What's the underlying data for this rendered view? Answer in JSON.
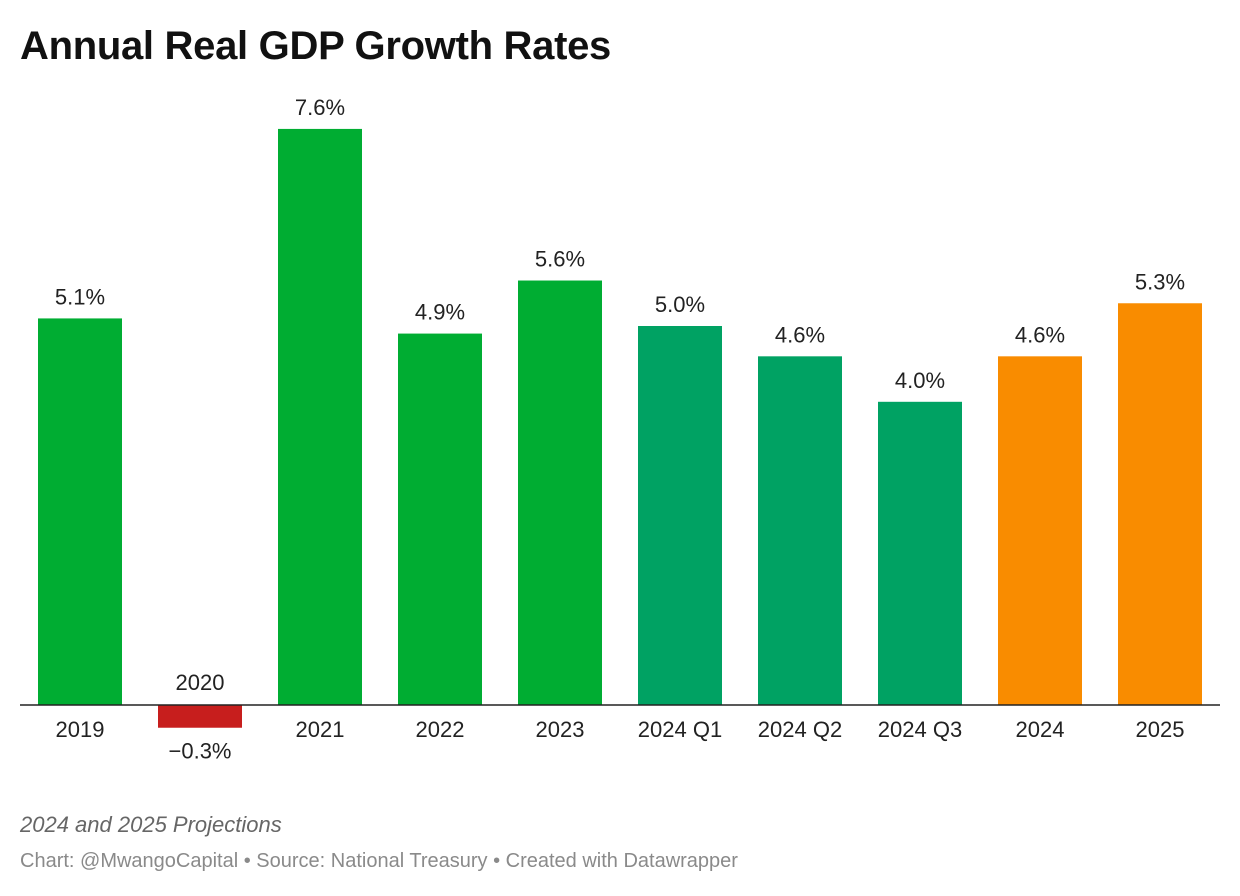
{
  "title": "Annual Real GDP Growth Rates",
  "notes": "2024 and 2025 Projections",
  "footer": "Chart: @MwangoCapital • Source: National Treasury • Created with Datawrapper",
  "colors": {
    "historical": "#00ad32",
    "quarterly": "#00a263",
    "projection": "#f98c00",
    "negative": "#c71e1d",
    "baseline": "#222222"
  },
  "chart_data": {
    "type": "bar",
    "categories": [
      "2019",
      "2020",
      "2021",
      "2022",
      "2023",
      "2024 Q1",
      "2024 Q2",
      "2024 Q3",
      "2024",
      "2025"
    ],
    "values": [
      5.1,
      -0.3,
      7.6,
      4.9,
      5.6,
      5.0,
      4.6,
      4.0,
      4.6,
      5.3
    ],
    "value_labels": [
      "5.1%",
      "−0.3%",
      "7.6%",
      "4.9%",
      "5.6%",
      "5.0%",
      "4.6%",
      "4.0%",
      "4.6%",
      "5.3%"
    ],
    "bar_colors": [
      "#00ad32",
      "#c71e1d",
      "#00ad32",
      "#00ad32",
      "#00ad32",
      "#00a263",
      "#00a263",
      "#00a263",
      "#f98c00",
      "#f98c00"
    ],
    "title": "Annual Real GDP Growth Rates",
    "xlabel": "",
    "ylabel": "",
    "ylim": [
      -0.3,
      7.6
    ],
    "grid": false,
    "legend": "none"
  }
}
